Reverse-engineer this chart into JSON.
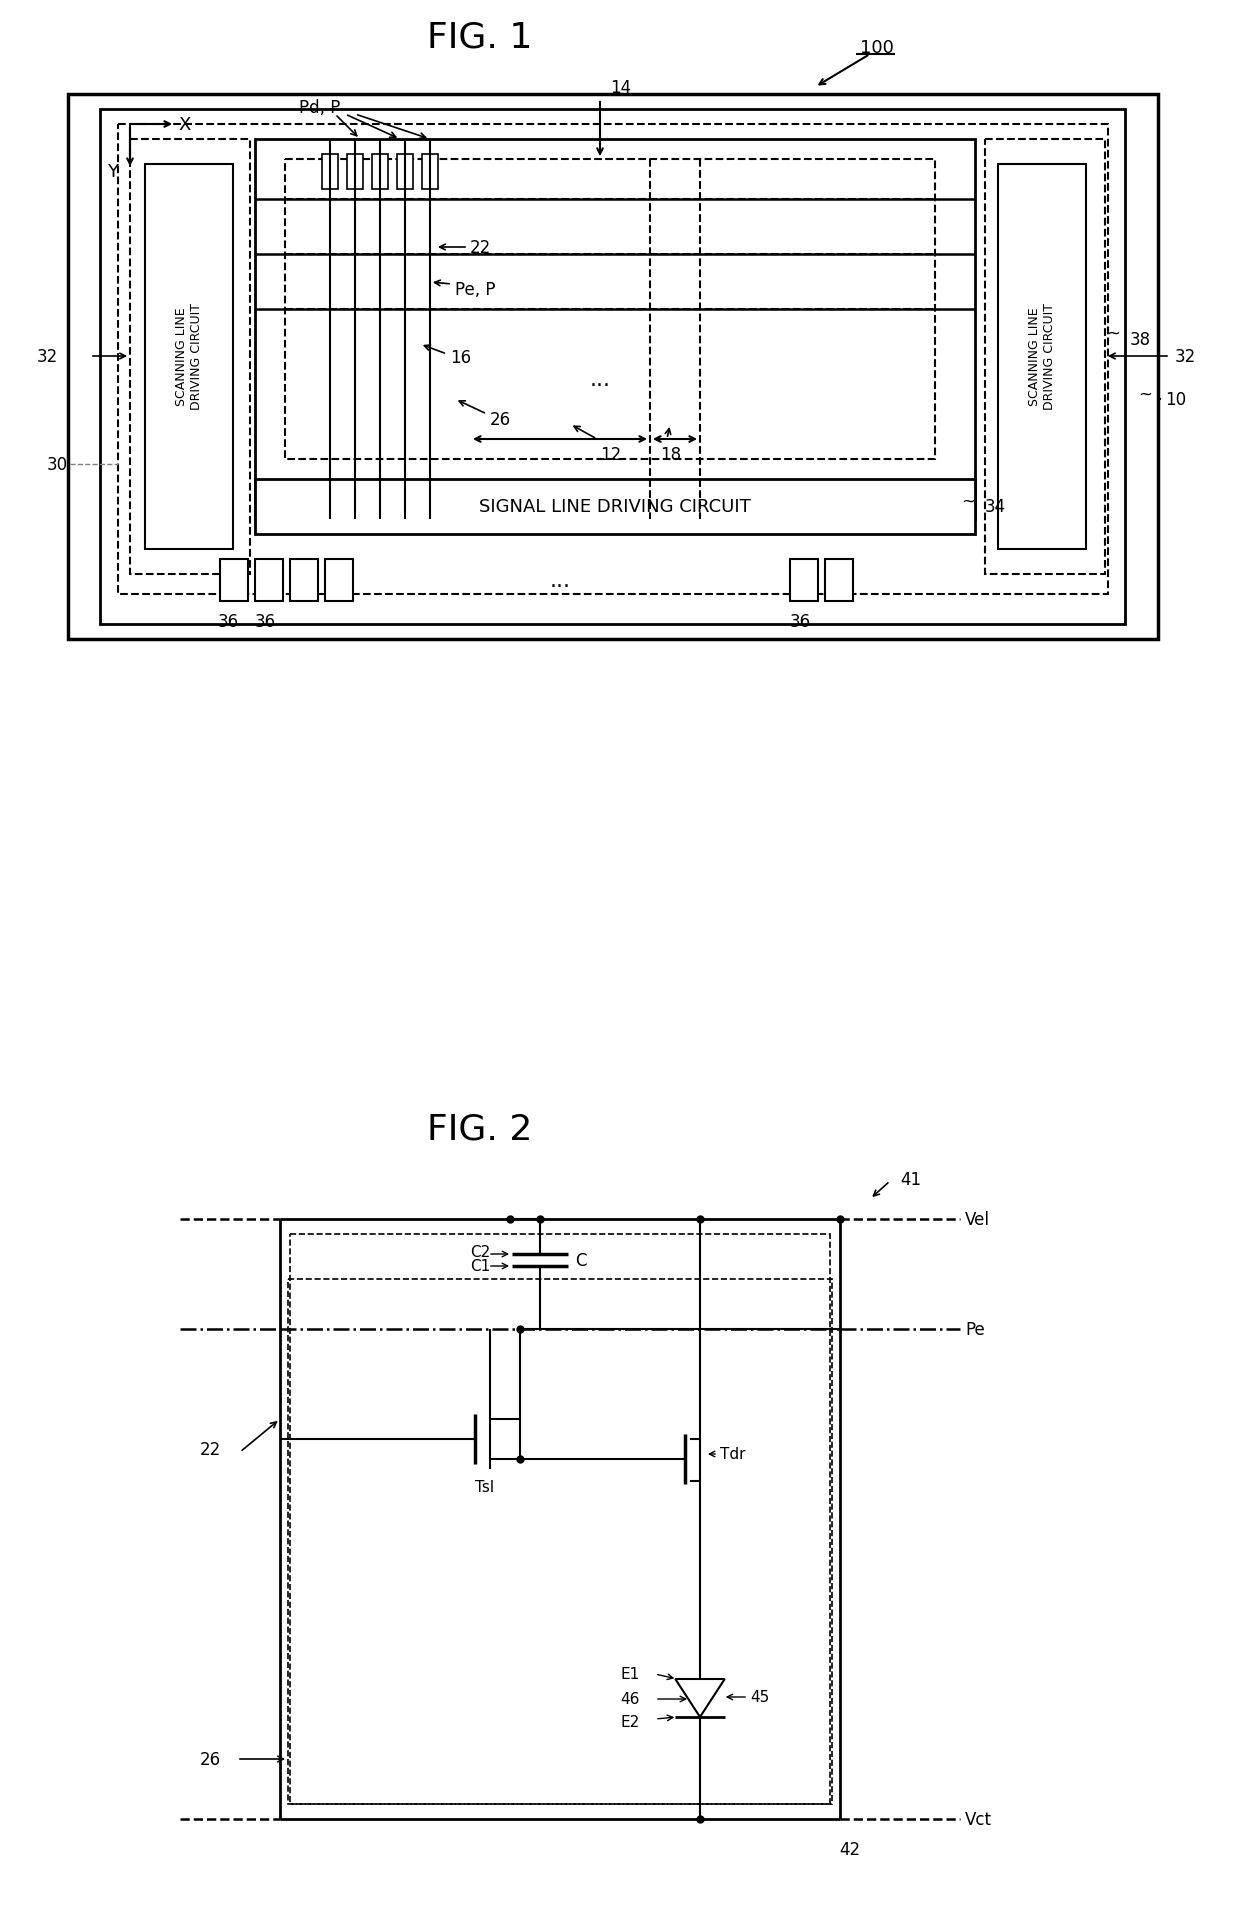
{
  "fig1_title": "FIG. 1",
  "fig2_title": "FIG. 2",
  "bg_color": "#ffffff",
  "line_color": "#000000",
  "fig1_label_100": "100",
  "fig1_label_14": "14",
  "fig1_label_Pd_P": "Pd, P",
  "fig1_label_22": "22",
  "fig1_label_Pe_P": "Pe, P",
  "fig1_label_16": "16",
  "fig1_label_12": "12",
  "fig1_label_18": "18",
  "fig1_label_26": "26",
  "fig1_label_30": "30",
  "fig1_label_32a": "32",
  "fig1_label_32b": "32",
  "fig1_label_34": "34",
  "fig1_label_38": "38",
  "fig1_label_10": "10",
  "fig1_label_36a": "36",
  "fig1_label_36b": "36",
  "fig1_label_36c": "36",
  "fig1_scan_left": "SCANNING LINE\nDRIVING CIRCUIT",
  "fig1_scan_right": "SCANNING LINE\nDRIVING CIRCUIT",
  "fig1_signal": "SIGNAL LINE DRIVING CIRCUIT",
  "fig1_X": "X",
  "fig1_Y": "Y",
  "fig2_label_41": "41",
  "fig2_label_Vel": "Vel",
  "fig2_label_Pe": "Pe",
  "fig2_label_Tdr": "Tdr",
  "fig2_label_Tsl": "Tsl",
  "fig2_label_22": "22",
  "fig2_label_26": "26",
  "fig2_label_C2": "C2",
  "fig2_label_C1": "C1",
  "fig2_label_C": "C",
  "fig2_label_E1": "E1",
  "fig2_label_46": "46",
  "fig2_label_E2": "E2",
  "fig2_label_45": "45",
  "fig2_label_Vct": "Vct",
  "fig2_label_42": "42"
}
